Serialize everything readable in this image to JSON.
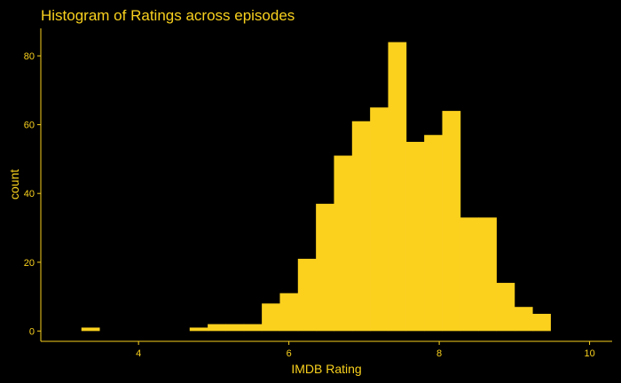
{
  "chart_data": {
    "type": "bar",
    "title": "Histogram of Ratings across episodes",
    "xlabel": "IMDB Rating",
    "ylabel": "count",
    "xlim": [
      2.7,
      10.3
    ],
    "ylim": [
      -3,
      88
    ],
    "x_ticks": [
      4,
      6,
      8,
      10
    ],
    "y_ticks": [
      0,
      20,
      40,
      60,
      80
    ],
    "bin_width": 0.24,
    "bins": [
      {
        "x0": 3.24,
        "x1": 3.48,
        "count": 1
      },
      {
        "x0": 4.68,
        "x1": 4.92,
        "count": 1
      },
      {
        "x0": 4.92,
        "x1": 5.16,
        "count": 2
      },
      {
        "x0": 5.16,
        "x1": 5.4,
        "count": 2
      },
      {
        "x0": 5.4,
        "x1": 5.64,
        "count": 2
      },
      {
        "x0": 5.64,
        "x1": 5.88,
        "count": 8
      },
      {
        "x0": 5.88,
        "x1": 6.12,
        "count": 11
      },
      {
        "x0": 6.12,
        "x1": 6.36,
        "count": 21
      },
      {
        "x0": 6.36,
        "x1": 6.6,
        "count": 37
      },
      {
        "x0": 6.6,
        "x1": 6.84,
        "count": 51
      },
      {
        "x0": 6.84,
        "x1": 7.08,
        "count": 61
      },
      {
        "x0": 7.08,
        "x1": 7.32,
        "count": 65
      },
      {
        "x0": 7.32,
        "x1": 7.56,
        "count": 84
      },
      {
        "x0": 7.56,
        "x1": 7.8,
        "count": 55
      },
      {
        "x0": 7.8,
        "x1": 8.04,
        "count": 57
      },
      {
        "x0": 8.04,
        "x1": 8.28,
        "count": 64
      },
      {
        "x0": 8.28,
        "x1": 8.52,
        "count": 33
      },
      {
        "x0": 8.52,
        "x1": 8.76,
        "count": 33
      },
      {
        "x0": 8.76,
        "x1": 9.0,
        "count": 14
      },
      {
        "x0": 9.0,
        "x1": 9.24,
        "count": 7
      },
      {
        "x0": 9.24,
        "x1": 9.48,
        "count": 5
      }
    ],
    "grid": false,
    "colors": {
      "background": "#000000",
      "bar": "#FCD11E",
      "text": "#F9D11E"
    }
  }
}
